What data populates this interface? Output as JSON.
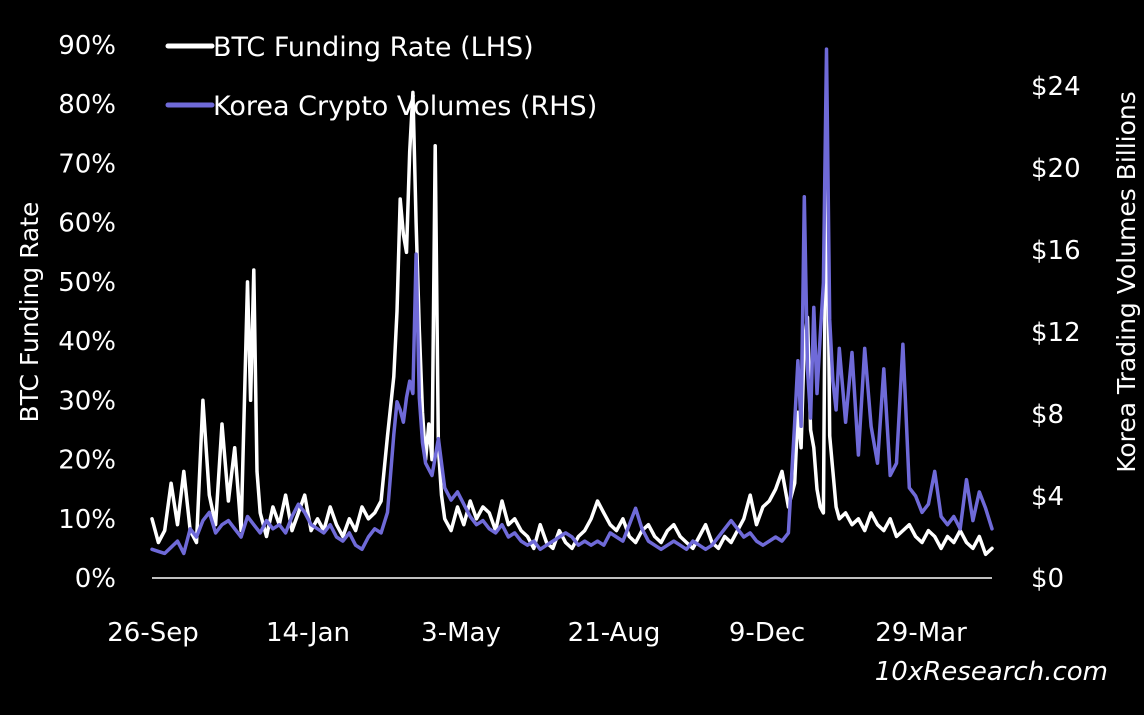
{
  "colors": {
    "background": "#000000",
    "funding": "#ffffff",
    "volumes": "#6f6ad8",
    "axis": "#ffffff"
  },
  "watermark": "10xResearch.com",
  "chart_data": {
    "type": "line",
    "x": [
      "26-Sep",
      "14-Jan",
      "3-May",
      "21-Aug",
      "9-Dec",
      "29-Mar"
    ],
    "xlabel": "",
    "ylabel": "BTC Funding Rate",
    "ylabel_right": "Korea Trading  Volumes Billions",
    "ylim": [
      0,
      90
    ],
    "ylim_right": [
      0,
      26
    ],
    "yticks": [
      "0%",
      "10%",
      "20%",
      "30%",
      "40%",
      "50%",
      "60%",
      "70%",
      "80%",
      "90%"
    ],
    "yticks_right": [
      "$0",
      "$4",
      "$8",
      "$12",
      "$16",
      "$20",
      "$24"
    ],
    "legend_position": "top-left",
    "series": [
      {
        "name": "BTC Funding Rate (LHS)",
        "axis": "left",
        "unit": "%",
        "points": [
          [
            0,
            10
          ],
          [
            10,
            6
          ],
          [
            20,
            8
          ],
          [
            30,
            16
          ],
          [
            40,
            9
          ],
          [
            50,
            18
          ],
          [
            60,
            8
          ],
          [
            70,
            6
          ],
          [
            80,
            30
          ],
          [
            90,
            14
          ],
          [
            100,
            9
          ],
          [
            110,
            26
          ],
          [
            120,
            13
          ],
          [
            130,
            22
          ],
          [
            140,
            8
          ],
          [
            150,
            50
          ],
          [
            155,
            30
          ],
          [
            160,
            52
          ],
          [
            165,
            18
          ],
          [
            170,
            11
          ],
          [
            180,
            7
          ],
          [
            190,
            12
          ],
          [
            200,
            9
          ],
          [
            210,
            14
          ],
          [
            220,
            8
          ],
          [
            230,
            11
          ],
          [
            240,
            14
          ],
          [
            250,
            8
          ],
          [
            260,
            10
          ],
          [
            270,
            8
          ],
          [
            280,
            12
          ],
          [
            290,
            9
          ],
          [
            300,
            7
          ],
          [
            310,
            10
          ],
          [
            320,
            8
          ],
          [
            330,
            12
          ],
          [
            340,
            10
          ],
          [
            350,
            11
          ],
          [
            360,
            13
          ],
          [
            370,
            24
          ],
          [
            380,
            34
          ],
          [
            385,
            45
          ],
          [
            390,
            64
          ],
          [
            395,
            58
          ],
          [
            400,
            55
          ],
          [
            405,
            72
          ],
          [
            410,
            82
          ],
          [
            415,
            60
          ],
          [
            420,
            42
          ],
          [
            425,
            28
          ],
          [
            430,
            20
          ],
          [
            435,
            26
          ],
          [
            440,
            20
          ],
          [
            445,
            73
          ],
          [
            450,
            22
          ],
          [
            455,
            14
          ],
          [
            460,
            10
          ],
          [
            470,
            8
          ],
          [
            480,
            12
          ],
          [
            490,
            9
          ],
          [
            500,
            13
          ],
          [
            510,
            10
          ],
          [
            520,
            12
          ],
          [
            530,
            11
          ],
          [
            540,
            8
          ],
          [
            550,
            13
          ],
          [
            560,
            9
          ],
          [
            570,
            10
          ],
          [
            580,
            8
          ],
          [
            590,
            7
          ],
          [
            600,
            5
          ],
          [
            610,
            9
          ],
          [
            620,
            6
          ],
          [
            630,
            5
          ],
          [
            640,
            8
          ],
          [
            650,
            6
          ],
          [
            660,
            5
          ],
          [
            670,
            7
          ],
          [
            680,
            8
          ],
          [
            690,
            10
          ],
          [
            700,
            13
          ],
          [
            710,
            11
          ],
          [
            720,
            9
          ],
          [
            730,
            8
          ],
          [
            740,
            10
          ],
          [
            750,
            7
          ],
          [
            760,
            6
          ],
          [
            770,
            8
          ],
          [
            780,
            9
          ],
          [
            790,
            7
          ],
          [
            800,
            6
          ],
          [
            810,
            8
          ],
          [
            820,
            9
          ],
          [
            830,
            7
          ],
          [
            840,
            6
          ],
          [
            850,
            5
          ],
          [
            860,
            7
          ],
          [
            870,
            9
          ],
          [
            880,
            6
          ],
          [
            890,
            5
          ],
          [
            900,
            7
          ],
          [
            910,
            6
          ],
          [
            920,
            8
          ],
          [
            930,
            10
          ],
          [
            940,
            14
          ],
          [
            950,
            9
          ],
          [
            960,
            12
          ],
          [
            970,
            13
          ],
          [
            980,
            15
          ],
          [
            990,
            18
          ],
          [
            1000,
            12
          ],
          [
            1010,
            16
          ],
          [
            1015,
            28
          ],
          [
            1020,
            22
          ],
          [
            1025,
            40
          ],
          [
            1030,
            44
          ],
          [
            1035,
            25
          ],
          [
            1040,
            22
          ],
          [
            1045,
            15
          ],
          [
            1050,
            12
          ],
          [
            1055,
            11
          ],
          [
            1060,
            81
          ],
          [
            1065,
            24
          ],
          [
            1070,
            18
          ],
          [
            1075,
            12
          ],
          [
            1080,
            10
          ],
          [
            1090,
            11
          ],
          [
            1100,
            9
          ],
          [
            1110,
            10
          ],
          [
            1120,
            8
          ],
          [
            1130,
            11
          ],
          [
            1140,
            9
          ],
          [
            1150,
            8
          ],
          [
            1160,
            10
          ],
          [
            1170,
            7
          ],
          [
            1180,
            8
          ],
          [
            1190,
            9
          ],
          [
            1200,
            7
          ],
          [
            1210,
            6
          ],
          [
            1220,
            8
          ],
          [
            1230,
            7
          ],
          [
            1240,
            5
          ],
          [
            1250,
            7
          ],
          [
            1260,
            6
          ],
          [
            1270,
            8
          ],
          [
            1280,
            6
          ],
          [
            1290,
            5
          ],
          [
            1300,
            7
          ],
          [
            1310,
            4
          ],
          [
            1320,
            5
          ]
        ]
      },
      {
        "name": "Korea Crypto Volumes (RHS)",
        "axis": "right",
        "unit": "$B",
        "points": [
          [
            0,
            1.4
          ],
          [
            10,
            1.3
          ],
          [
            20,
            1.2
          ],
          [
            30,
            1.5
          ],
          [
            40,
            1.8
          ],
          [
            50,
            1.2
          ],
          [
            60,
            2.4
          ],
          [
            70,
            2.0
          ],
          [
            80,
            2.8
          ],
          [
            90,
            3.2
          ],
          [
            100,
            2.2
          ],
          [
            110,
            2.6
          ],
          [
            120,
            2.8
          ],
          [
            130,
            2.4
          ],
          [
            140,
            2.0
          ],
          [
            150,
            3.0
          ],
          [
            160,
            2.6
          ],
          [
            170,
            2.2
          ],
          [
            180,
            2.8
          ],
          [
            190,
            2.4
          ],
          [
            200,
            2.6
          ],
          [
            210,
            2.2
          ],
          [
            220,
            3.0
          ],
          [
            230,
            3.6
          ],
          [
            240,
            3.2
          ],
          [
            250,
            2.6
          ],
          [
            260,
            2.4
          ],
          [
            270,
            2.2
          ],
          [
            280,
            2.6
          ],
          [
            290,
            2.0
          ],
          [
            300,
            1.8
          ],
          [
            310,
            2.2
          ],
          [
            320,
            1.6
          ],
          [
            330,
            1.4
          ],
          [
            340,
            2.0
          ],
          [
            350,
            2.4
          ],
          [
            360,
            2.2
          ],
          [
            370,
            3.2
          ],
          [
            380,
            7.0
          ],
          [
            385,
            8.6
          ],
          [
            390,
            8.2
          ],
          [
            395,
            7.6
          ],
          [
            400,
            8.8
          ],
          [
            405,
            9.6
          ],
          [
            410,
            9.0
          ],
          [
            415,
            15.8
          ],
          [
            420,
            8.8
          ],
          [
            425,
            6.6
          ],
          [
            430,
            5.6
          ],
          [
            440,
            5.0
          ],
          [
            450,
            6.8
          ],
          [
            460,
            4.4
          ],
          [
            470,
            3.8
          ],
          [
            480,
            4.2
          ],
          [
            490,
            3.6
          ],
          [
            500,
            3.0
          ],
          [
            510,
            2.6
          ],
          [
            520,
            2.8
          ],
          [
            530,
            2.4
          ],
          [
            540,
            2.2
          ],
          [
            550,
            2.6
          ],
          [
            560,
            2.0
          ],
          [
            570,
            2.2
          ],
          [
            580,
            1.8
          ],
          [
            590,
            1.6
          ],
          [
            600,
            1.8
          ],
          [
            610,
            1.4
          ],
          [
            620,
            1.6
          ],
          [
            630,
            1.8
          ],
          [
            640,
            2.0
          ],
          [
            650,
            2.2
          ],
          [
            660,
            2.0
          ],
          [
            670,
            1.6
          ],
          [
            680,
            1.8
          ],
          [
            690,
            1.6
          ],
          [
            700,
            1.8
          ],
          [
            710,
            1.6
          ],
          [
            720,
            2.2
          ],
          [
            730,
            2.0
          ],
          [
            740,
            1.8
          ],
          [
            750,
            2.6
          ],
          [
            760,
            3.4
          ],
          [
            770,
            2.4
          ],
          [
            780,
            1.8
          ],
          [
            790,
            1.6
          ],
          [
            800,
            1.4
          ],
          [
            810,
            1.6
          ],
          [
            820,
            1.8
          ],
          [
            830,
            1.6
          ],
          [
            840,
            1.4
          ],
          [
            850,
            1.8
          ],
          [
            860,
            1.6
          ],
          [
            870,
            1.4
          ],
          [
            880,
            1.6
          ],
          [
            890,
            2.0
          ],
          [
            900,
            2.4
          ],
          [
            910,
            2.8
          ],
          [
            920,
            2.4
          ],
          [
            930,
            2.0
          ],
          [
            940,
            2.2
          ],
          [
            950,
            1.8
          ],
          [
            960,
            1.6
          ],
          [
            970,
            1.8
          ],
          [
            980,
            2.0
          ],
          [
            990,
            1.8
          ],
          [
            1000,
            2.2
          ],
          [
            1010,
            7.6
          ],
          [
            1015,
            10.6
          ],
          [
            1020,
            7.4
          ],
          [
            1025,
            18.6
          ],
          [
            1030,
            10.2
          ],
          [
            1035,
            7.8
          ],
          [
            1040,
            13.2
          ],
          [
            1045,
            9.0
          ],
          [
            1050,
            11.8
          ],
          [
            1055,
            14.4
          ],
          [
            1060,
            25.8
          ],
          [
            1065,
            12.6
          ],
          [
            1070,
            9.6
          ],
          [
            1075,
            8.2
          ],
          [
            1080,
            11.2
          ],
          [
            1090,
            7.6
          ],
          [
            1100,
            11.0
          ],
          [
            1110,
            6.0
          ],
          [
            1120,
            11.2
          ],
          [
            1130,
            7.4
          ],
          [
            1140,
            5.6
          ],
          [
            1150,
            10.2
          ],
          [
            1160,
            5.0
          ],
          [
            1170,
            5.6
          ],
          [
            1180,
            11.4
          ],
          [
            1190,
            4.4
          ],
          [
            1200,
            4.0
          ],
          [
            1210,
            3.2
          ],
          [
            1220,
            3.6
          ],
          [
            1230,
            5.2
          ],
          [
            1240,
            3.0
          ],
          [
            1250,
            2.6
          ],
          [
            1260,
            3.0
          ],
          [
            1270,
            2.4
          ],
          [
            1280,
            4.8
          ],
          [
            1290,
            2.8
          ],
          [
            1300,
            4.2
          ],
          [
            1310,
            3.4
          ],
          [
            1320,
            2.4
          ]
        ]
      }
    ]
  }
}
